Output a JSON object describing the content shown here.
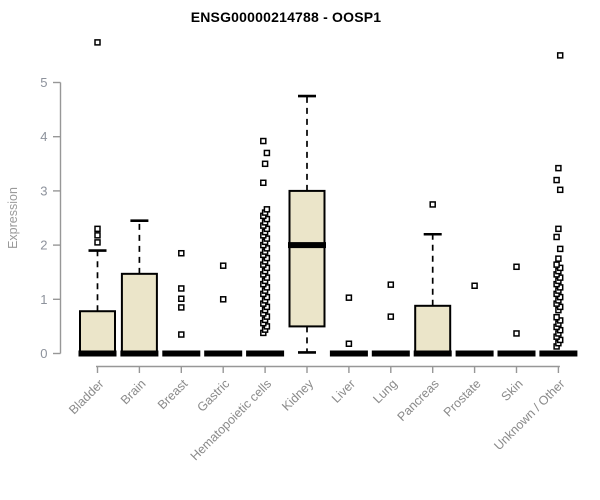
{
  "chart_data": {
    "type": "boxplot",
    "title": "ENSG00000214788 - OOSP1",
    "ylabel": "Expression",
    "xlabel": "",
    "ylim": [
      0,
      5
    ],
    "yticks": [
      0,
      1,
      2,
      3,
      4,
      5
    ],
    "grid": false,
    "legend": "none",
    "xticklabel_rotation": 45,
    "colors": {
      "box_fill": "#EBE5C9",
      "box_stroke": "#000000",
      "median": "#000000",
      "whisker": "#000000",
      "outlier_stroke": "#000000",
      "outlier_fill": "#ffffff",
      "axis": "#979797",
      "ytick_label": "#8d929c",
      "xtick_label": "#8a8a8a",
      "ylabel": "#9a9a9a",
      "title": "#000000",
      "background": "#ffffff"
    },
    "categories": [
      {
        "label": "Bladder",
        "q1": 0,
        "median": 0,
        "q3": 0.78,
        "whisker_low": 0,
        "whisker_high": 1.9,
        "outliers": [
          2.05,
          2.18,
          2.3,
          5.74
        ]
      },
      {
        "label": "Brain",
        "q1": 0,
        "median": 0,
        "q3": 1.47,
        "whisker_low": 0,
        "whisker_high": 2.45,
        "outliers": []
      },
      {
        "label": "Breast",
        "q1": 0,
        "median": 0,
        "q3": 0,
        "whisker_low": 0,
        "whisker_high": 0,
        "outliers": [
          0.35,
          0.85,
          1.01,
          1.2,
          1.85
        ]
      },
      {
        "label": "Gastric",
        "q1": 0,
        "median": 0,
        "q3": 0,
        "whisker_low": 0,
        "whisker_high": 0,
        "outliers": [
          1.0,
          1.62
        ]
      },
      {
        "label": "Hematopoietic cells",
        "q1": 0,
        "median": 0,
        "q3": 0,
        "whisker_low": 0,
        "whisker_high": 0,
        "outliers": [
          0.38,
          0.44,
          0.5,
          0.56,
          0.62,
          0.68,
          0.74,
          0.8,
          0.86,
          0.92,
          0.98,
          1.04,
          1.1,
          1.16,
          1.22,
          1.28,
          1.34,
          1.4,
          1.46,
          1.52,
          1.58,
          1.64,
          1.7,
          1.76,
          1.82,
          1.88,
          1.94,
          2.0,
          2.06,
          2.12,
          2.18,
          2.24,
          2.3,
          2.36,
          2.42,
          2.48,
          2.54,
          2.6,
          2.66,
          3.15,
          3.5,
          3.7,
          3.92
        ]
      },
      {
        "label": "Kidney",
        "q1": 0.5,
        "median": 2.0,
        "q3": 3.0,
        "whisker_low": 0.02,
        "whisker_high": 4.75,
        "outliers": []
      },
      {
        "label": "Liver",
        "q1": 0,
        "median": 0,
        "q3": 0,
        "whisker_low": 0,
        "whisker_high": 0,
        "outliers": [
          0.18,
          1.03
        ]
      },
      {
        "label": "Lung",
        "q1": 0,
        "median": 0,
        "q3": 0,
        "whisker_low": 0,
        "whisker_high": 0,
        "outliers": [
          0.68,
          1.27
        ]
      },
      {
        "label": "Pancreas",
        "q1": 0,
        "median": 0,
        "q3": 0.88,
        "whisker_low": 0,
        "whisker_high": 2.2,
        "outliers": [
          2.75
        ]
      },
      {
        "label": "Prostate",
        "q1": 0,
        "median": 0,
        "q3": 0,
        "whisker_low": 0,
        "whisker_high": 0,
        "outliers": [
          1.25
        ]
      },
      {
        "label": "Skin",
        "q1": 0,
        "median": 0,
        "q3": 0,
        "whisker_low": 0,
        "whisker_high": 0,
        "outliers": [
          0.37,
          1.6
        ]
      },
      {
        "label": "Unknown / Other",
        "q1": 0,
        "median": 0,
        "q3": 0,
        "whisker_low": 0,
        "whisker_high": 0,
        "outliers": [
          0.13,
          0.19,
          0.25,
          0.31,
          0.37,
          0.43,
          0.49,
          0.55,
          0.61,
          0.67,
          0.8,
          0.86,
          0.92,
          0.98,
          1.04,
          1.1,
          1.16,
          1.22,
          1.28,
          1.34,
          1.4,
          1.46,
          1.52,
          1.58,
          1.64,
          1.75,
          1.93,
          2.15,
          2.3,
          3.02,
          3.2,
          3.42,
          5.5
        ]
      }
    ]
  }
}
